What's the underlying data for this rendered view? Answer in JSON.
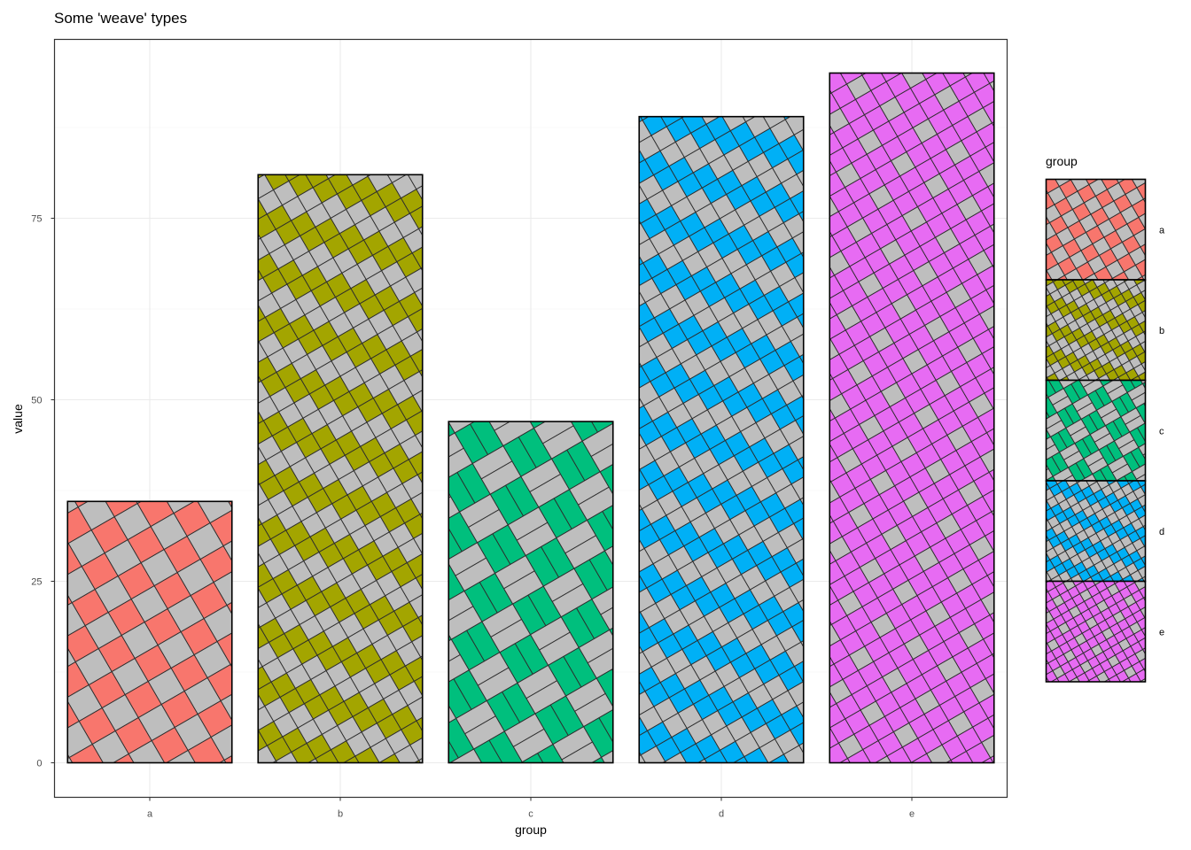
{
  "chart_data": {
    "type": "bar",
    "title": "Some 'weave' types",
    "xlabel": "group",
    "ylabel": "value",
    "categories": [
      "a",
      "b",
      "c",
      "d",
      "e"
    ],
    "values": [
      36,
      81,
      47,
      89,
      95
    ],
    "ylim": [
      0,
      100
    ],
    "yticks": [
      0,
      25,
      50,
      75
    ],
    "grid": true,
    "legend": {
      "title": "group",
      "position": "right",
      "items": [
        "a",
        "b",
        "c",
        "d",
        "e"
      ]
    },
    "colors": [
      "#F8766D",
      "#A3A500",
      "#00BF7D",
      "#00B0F6",
      "#E76BF3"
    ],
    "weave_color": "#BEBEBE",
    "weave_types": [
      "plain",
      "twill",
      "basket",
      "twill",
      "satin"
    ]
  }
}
